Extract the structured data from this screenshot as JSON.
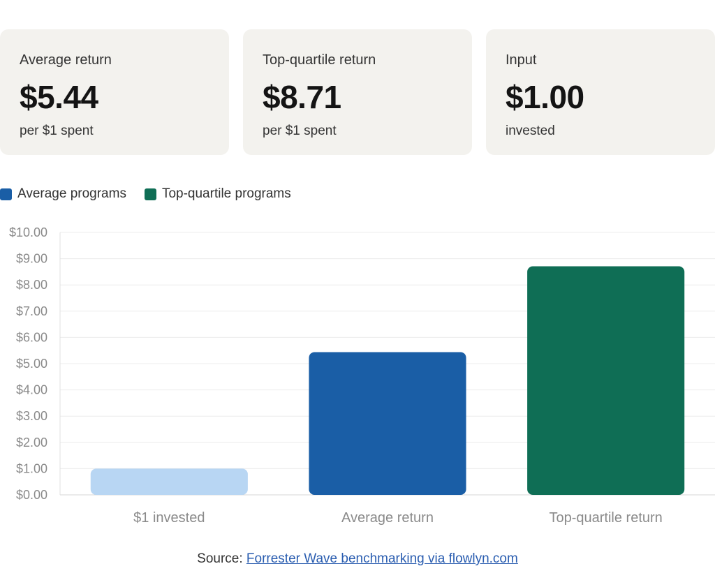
{
  "cards": [
    {
      "label": "Average return",
      "value": "$5.44",
      "sub": "per $1 spent"
    },
    {
      "label": "Top-quartile return",
      "value": "$8.71",
      "sub": "per $1 spent"
    },
    {
      "label": "Input",
      "value": "$1.00",
      "sub": "invested"
    }
  ],
  "legend": [
    {
      "label": "Average programs",
      "color": "#1a5ea6"
    },
    {
      "label": "Top-quartile programs",
      "color": "#0f6e55"
    }
  ],
  "chart_data": {
    "type": "bar",
    "categories": [
      "$1 invested",
      "Average return",
      "Top-quartile return"
    ],
    "values": [
      1.0,
      5.44,
      8.71
    ],
    "bar_colors": [
      "#b8d6f3",
      "#1a5ea6",
      "#0f6e55"
    ],
    "ylim": [
      0,
      10
    ],
    "y_ticks": [
      "$0.00",
      "$1.00",
      "$2.00",
      "$3.00",
      "$4.00",
      "$5.00",
      "$6.00",
      "$7.00",
      "$8.00",
      "$9.00",
      "$10.00"
    ],
    "grid": true,
    "legend_position": "top-left"
  },
  "source": {
    "prefix": "Source: ",
    "link_text": "Forrester Wave benchmarking via flowlyn.com"
  }
}
